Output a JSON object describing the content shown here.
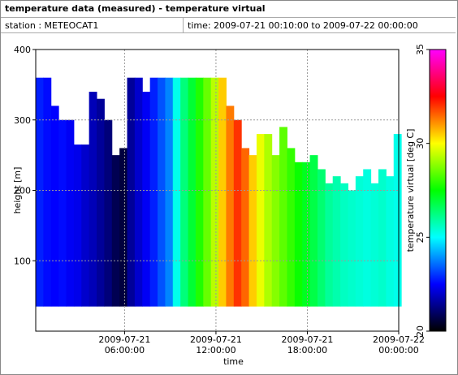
{
  "chart_data": {
    "type": "heatmap",
    "title": "temperature data (measured) - temperature virtual",
    "station": "station : METEOCAT1",
    "period": "time: 2009-07-21 00:10:00 to 2009-07-22 00:00:00",
    "xlabel": "time",
    "ylabel": "height [m]",
    "zlabel": "temperature virtual [deg C]",
    "min_height": 35,
    "x": [
      "2009-07-21 00:10:00",
      "2009-07-21 00:40:00",
      "2009-07-21 01:10:00",
      "2009-07-21 01:40:00",
      "2009-07-21 02:10:00",
      "2009-07-21 02:40:00",
      "2009-07-21 03:10:00",
      "2009-07-21 03:40:00",
      "2009-07-21 04:10:00",
      "2009-07-21 04:40:00",
      "2009-07-21 05:10:00",
      "2009-07-21 05:40:00",
      "2009-07-21 06:10:00",
      "2009-07-21 06:40:00",
      "2009-07-21 07:10:00",
      "2009-07-21 07:40:00",
      "2009-07-21 08:10:00",
      "2009-07-21 08:40:00",
      "2009-07-21 09:10:00",
      "2009-07-21 09:40:00",
      "2009-07-21 10:10:00",
      "2009-07-21 10:40:00",
      "2009-07-21 11:10:00",
      "2009-07-21 11:40:00",
      "2009-07-21 12:10:00",
      "2009-07-21 12:40:00",
      "2009-07-21 13:10:00",
      "2009-07-21 13:40:00",
      "2009-07-21 14:10:00",
      "2009-07-21 14:40:00",
      "2009-07-21 15:10:00",
      "2009-07-21 15:40:00",
      "2009-07-21 16:10:00",
      "2009-07-21 16:40:00",
      "2009-07-21 17:10:00",
      "2009-07-21 17:40:00",
      "2009-07-21 18:10:00",
      "2009-07-21 18:40:00",
      "2009-07-21 19:10:00",
      "2009-07-21 19:40:00",
      "2009-07-21 20:10:00",
      "2009-07-21 20:40:00",
      "2009-07-21 21:10:00",
      "2009-07-21 21:40:00",
      "2009-07-21 22:10:00",
      "2009-07-21 22:40:00",
      "2009-07-21 23:10:00",
      "2009-07-21 23:40:00"
    ],
    "tops": [
      360,
      360,
      320,
      300,
      300,
      265,
      265,
      340,
      330,
      300,
      250,
      260,
      360,
      360,
      340,
      360,
      360,
      360,
      360,
      360,
      360,
      360,
      360,
      360,
      360,
      320,
      300,
      260,
      250,
      280,
      280,
      250,
      290,
      260,
      240,
      240,
      250,
      230,
      210,
      220,
      210,
      200,
      220,
      230,
      210,
      230,
      220,
      280
    ],
    "values": [
      22.8,
      22.6,
      22.5,
      22.6,
      22.4,
      22.3,
      22.0,
      21.8,
      21.5,
      21.2,
      20.8,
      20.6,
      21.5,
      22.0,
      22.4,
      22.8,
      23.3,
      23.8,
      25.2,
      26.3,
      27.0,
      27.8,
      28.5,
      29.3,
      30.5,
      31.3,
      32.0,
      31.5,
      30.5,
      29.8,
      29.2,
      28.8,
      28.4,
      28.0,
      27.6,
      27.2,
      26.8,
      26.4,
      26.0,
      25.8,
      25.6,
      25.5,
      25.4,
      25.3,
      25.4,
      25.5,
      25.3,
      25.2
    ],
    "xlim": [
      "2009-07-21 00:10:00",
      "2009-07-22 00:00:00"
    ],
    "xticks": [
      {
        "value": "2009-07-21 06:00:00",
        "label": "2009-07-21\n06:00:00"
      },
      {
        "value": "2009-07-21 12:00:00",
        "label": "2009-07-21\n12:00:00"
      },
      {
        "value": "2009-07-21 18:00:00",
        "label": "2009-07-21\n18:00:00"
      },
      {
        "value": "2009-07-22 00:00:00",
        "label": "2009-07-22\n00:00:00"
      }
    ],
    "ylim": [
      0,
      400
    ],
    "yticks": [
      100,
      200,
      300,
      400
    ],
    "zlim": [
      20,
      35
    ],
    "zticks": [
      20,
      25,
      30,
      35
    ],
    "colormap": [
      "#000000",
      "#0000ff",
      "#00ffff",
      "#00ff00",
      "#ffff00",
      "#ff0000",
      "#ff00ff"
    ],
    "grid": true
  }
}
